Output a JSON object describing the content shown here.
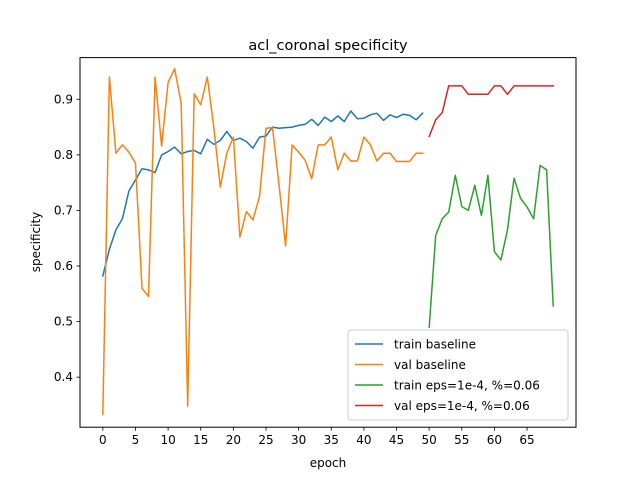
{
  "chart_data": {
    "type": "line",
    "title": "acl_coronal specificity",
    "xlabel": "epoch",
    "ylabel": "specificity",
    "xlim": [
      -3.5,
      72.5
    ],
    "ylim": [
      0.31,
      0.975
    ],
    "xticks": [
      0,
      5,
      10,
      15,
      20,
      25,
      30,
      35,
      40,
      45,
      50,
      55,
      60,
      65
    ],
    "yticks": [
      0.4,
      0.5,
      0.6,
      0.7,
      0.8,
      0.9
    ],
    "ytick_labels": [
      "0.4",
      "0.5",
      "0.6",
      "0.7",
      "0.8",
      "0.9"
    ],
    "grid": false,
    "legend_position": "lower right",
    "series": [
      {
        "name": "train baseline",
        "color": "#1f77b4",
        "x": [
          0,
          1,
          2,
          3,
          4,
          5,
          6,
          7,
          8,
          9,
          10,
          11,
          12,
          13,
          14,
          15,
          16,
          17,
          18,
          19,
          20,
          21,
          22,
          23,
          24,
          25,
          26,
          27,
          28,
          29,
          30,
          31,
          32,
          33,
          34,
          35,
          36,
          37,
          38,
          39,
          40,
          41,
          42,
          43,
          44,
          45,
          46,
          47,
          48,
          49
        ],
        "values": [
          0.582,
          0.63,
          0.665,
          0.685,
          0.735,
          0.755,
          0.775,
          0.773,
          0.768,
          0.8,
          0.806,
          0.814,
          0.802,
          0.806,
          0.808,
          0.802,
          0.828,
          0.819,
          0.826,
          0.842,
          0.826,
          0.83,
          0.824,
          0.812,
          0.832,
          0.834,
          0.85,
          0.848,
          0.849,
          0.85,
          0.853,
          0.855,
          0.864,
          0.853,
          0.868,
          0.86,
          0.87,
          0.86,
          0.879,
          0.865,
          0.866,
          0.872,
          0.875,
          0.862,
          0.872,
          0.867,
          0.873,
          0.871,
          0.863,
          0.875
        ]
      },
      {
        "name": "val baseline",
        "color": "#ff7f0e",
        "x": [
          0,
          1,
          2,
          3,
          4,
          5,
          6,
          7,
          8,
          9,
          10,
          11,
          12,
          13,
          14,
          15,
          16,
          17,
          18,
          19,
          20,
          21,
          22,
          23,
          24,
          25,
          26,
          27,
          28,
          29,
          30,
          31,
          32,
          33,
          34,
          35,
          36,
          37,
          38,
          39,
          40,
          41,
          42,
          43,
          44,
          45,
          46,
          47,
          48,
          49
        ],
        "values": [
          0.333,
          0.94,
          0.803,
          0.818,
          0.805,
          0.785,
          0.56,
          0.545,
          0.94,
          0.816,
          0.93,
          0.955,
          0.893,
          0.348,
          0.91,
          0.89,
          0.94,
          0.85,
          0.742,
          0.803,
          0.832,
          0.652,
          0.698,
          0.683,
          0.725,
          0.848,
          0.849,
          0.745,
          0.636,
          0.818,
          0.805,
          0.79,
          0.757,
          0.818,
          0.818,
          0.832,
          0.773,
          0.803,
          0.789,
          0.789,
          0.832,
          0.818,
          0.789,
          0.803,
          0.803,
          0.788,
          0.788,
          0.788,
          0.803,
          0.803
        ]
      },
      {
        "name": "train eps=1e-4, %=0.06",
        "color": "#2ca02c",
        "x": [
          50,
          51,
          52,
          53,
          54,
          55,
          56,
          57,
          58,
          59,
          60,
          61,
          62,
          63,
          64,
          65,
          66,
          67,
          68,
          69
        ],
        "values": [
          0.49,
          0.655,
          0.685,
          0.697,
          0.763,
          0.707,
          0.7,
          0.745,
          0.691,
          0.763,
          0.626,
          0.611,
          0.665,
          0.758,
          0.722,
          0.706,
          0.685,
          0.781,
          0.773,
          0.528
        ]
      },
      {
        "name": "val eps=1e-4, %=0.06",
        "color": "#d62728",
        "x": [
          50,
          51,
          52,
          53,
          54,
          55,
          56,
          57,
          58,
          59,
          60,
          61,
          62,
          63,
          64,
          65,
          66,
          67,
          68,
          69
        ],
        "values": [
          0.833,
          0.863,
          0.876,
          0.924,
          0.924,
          0.924,
          0.909,
          0.909,
          0.909,
          0.909,
          0.924,
          0.924,
          0.909,
          0.924,
          0.924,
          0.924,
          0.924,
          0.924,
          0.924,
          0.924
        ]
      }
    ]
  }
}
